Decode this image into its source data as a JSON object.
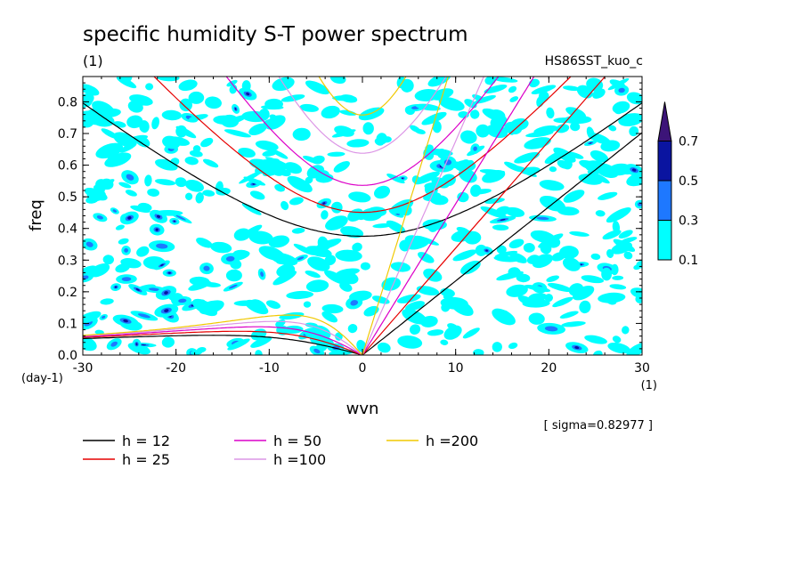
{
  "chart_data": {
    "type": "heatmap",
    "title": "specific humidity S-T power spectrum",
    "subtitle_left": "(1)",
    "subtitle_right": "HS86SST_kuo_c",
    "xlabel": "wvn",
    "xunit": "(1)",
    "ylabel": "freq",
    "yunit": "(day-1)",
    "xlim": [
      -30,
      30
    ],
    "ylim": [
      0,
      0.88
    ],
    "xticks": [
      -30,
      -20,
      -10,
      0,
      10,
      20,
      30
    ],
    "xtick_labels": [
      "-30",
      "-20",
      "-10",
      "0",
      "10",
      "20",
      "30"
    ],
    "yticks": [
      0,
      0.1,
      0.2,
      0.3,
      0.4,
      0.5,
      0.6,
      0.7,
      0.8
    ],
    "ytick_labels": [
      "0.0",
      "0.1",
      "0.2",
      "0.3",
      "0.4",
      "0.5",
      "0.6",
      "0.7",
      "0.8"
    ],
    "sigma_note": "[ sigma=0.82977 ]",
    "colorbar": {
      "levels": [
        0.1,
        0.3,
        0.5,
        0.7
      ],
      "labels": [
        "0.1",
        "0.3",
        "0.5",
        "0.7"
      ],
      "colors": [
        "#00ffff",
        "#1e78ff",
        "#0a14a0",
        "#3c1478"
      ]
    },
    "dispersion_curves": [
      {
        "label": "h = 12",
        "h": 12,
        "color": "#000000"
      },
      {
        "label": "h = 25",
        "h": 25,
        "color": "#e60000"
      },
      {
        "label": "h = 50",
        "h": 50,
        "color": "#dc00c8"
      },
      {
        "label": "h =100",
        "h": 100,
        "color": "#dc96e6"
      },
      {
        "label": "h =200",
        "h": 200,
        "color": "#f0c800"
      }
    ]
  }
}
